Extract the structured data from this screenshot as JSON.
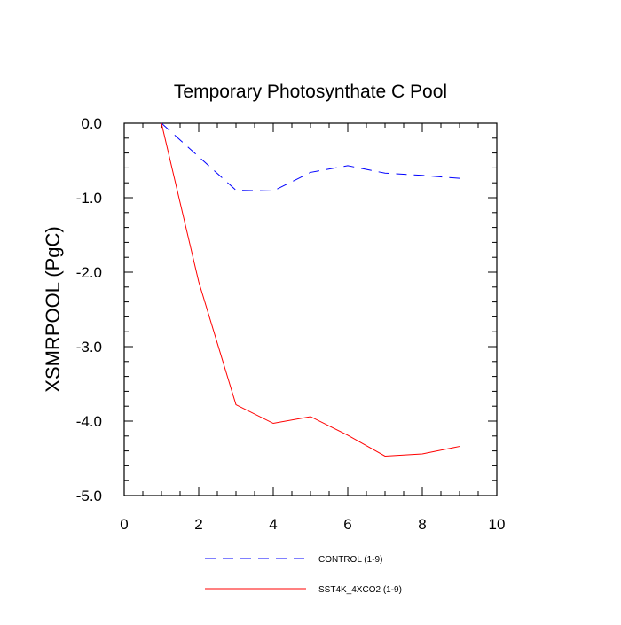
{
  "chart_data": {
    "type": "line",
    "title": "Temporary Photosynthate C Pool",
    "xlabel": "",
    "ylabel": "XSMRPOOL  (PgC)",
    "xlim": [
      0,
      10
    ],
    "ylim": [
      -5.0,
      0.0
    ],
    "x_ticks": [
      0,
      2,
      4,
      6,
      8,
      10
    ],
    "y_ticks": [
      0.0,
      -1.0,
      -2.0,
      -3.0,
      -4.0,
      -5.0
    ],
    "x_tick_labels": [
      "0",
      "2",
      "4",
      "6",
      "8",
      "10"
    ],
    "y_tick_labels": [
      "0.0",
      "-1.0",
      "-2.0",
      "-3.0",
      "-4.0",
      "-5.0"
    ],
    "legend_position": "bottom",
    "series": [
      {
        "name": "CONTROL (1-9)",
        "color": "#0000ff",
        "style": "dashed",
        "x": [
          1,
          2,
          3,
          4,
          5,
          6,
          7,
          8,
          9
        ],
        "values": [
          0.0,
          -0.45,
          -0.9,
          -0.91,
          -0.66,
          -0.57,
          -0.67,
          -0.7,
          -0.74
        ]
      },
      {
        "name": "SST4K_4XCO2 (1-9)",
        "color": "#ff0000",
        "style": "solid",
        "x": [
          1,
          2,
          3,
          4,
          5,
          6,
          7,
          8,
          9
        ],
        "values": [
          0.0,
          -2.13,
          -3.78,
          -4.03,
          -3.94,
          -4.19,
          -4.47,
          -4.44,
          -4.34
        ]
      }
    ]
  }
}
